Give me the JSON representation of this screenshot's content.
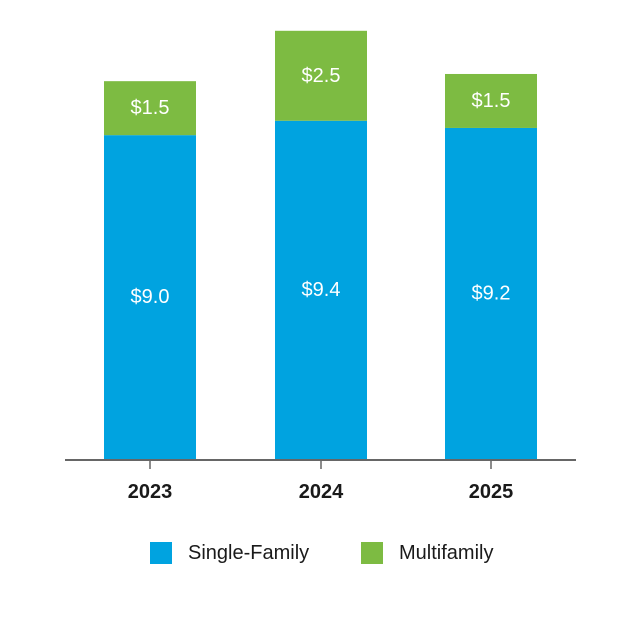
{
  "chart_data": {
    "type": "bar",
    "stacked": true,
    "categories": [
      "2023",
      "2024",
      "2025"
    ],
    "series": [
      {
        "name": "Single-Family",
        "values": [
          9.0,
          9.4,
          9.2
        ],
        "labels": [
          "$9.0",
          "$9.4",
          "$9.2"
        ],
        "color": "#00a3e0"
      },
      {
        "name": "Multifamily",
        "values": [
          1.5,
          2.5,
          1.5
        ],
        "labels": [
          "$1.5",
          "$2.5",
          "$1.5"
        ],
        "color": "#7dbb42"
      }
    ],
    "title": "",
    "xlabel": "",
    "ylabel": "",
    "ylim": [
      0,
      12.2
    ],
    "grid": false,
    "legend_position": "bottom",
    "axis_color": "#666666"
  }
}
